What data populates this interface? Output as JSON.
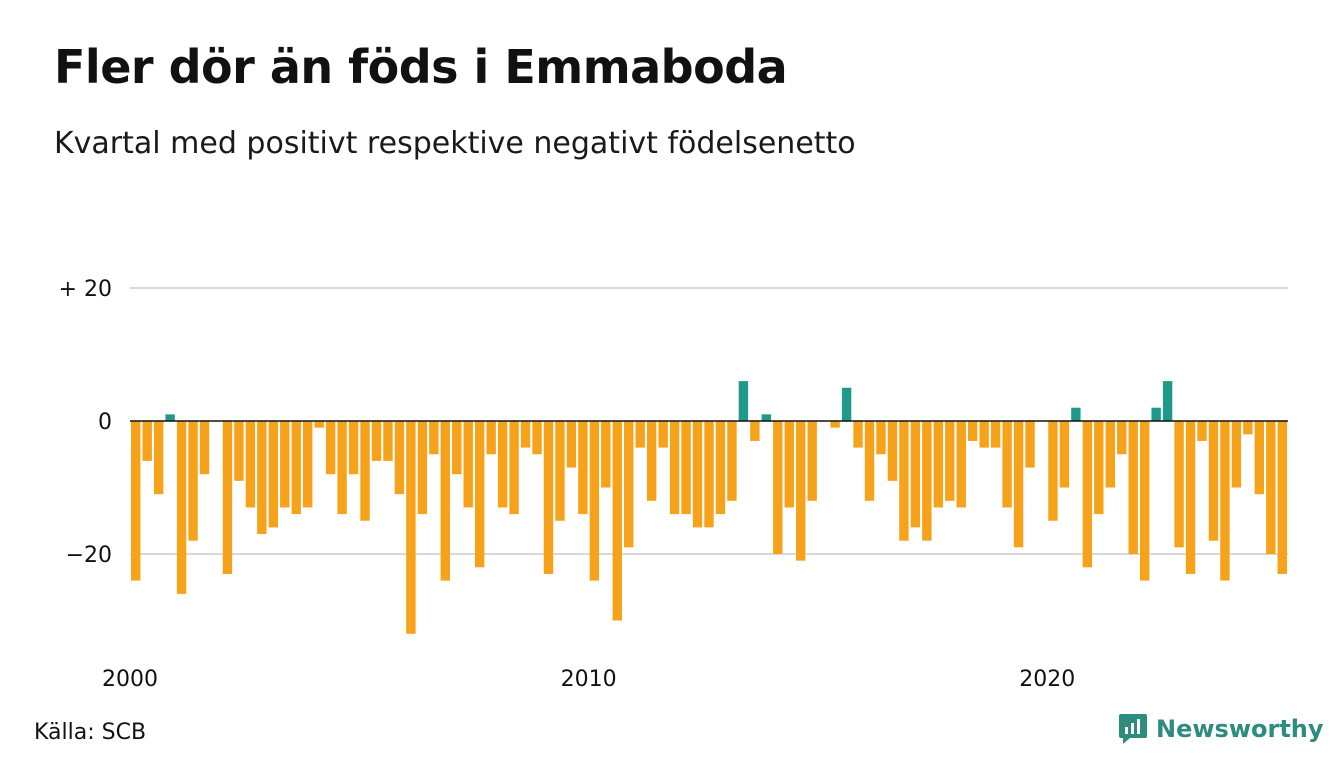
{
  "chart_data": {
    "type": "bar",
    "title": "Fler dör än föds i Emmaboda",
    "subtitle": "Kvartal med positivt respektive negativt födelsenetto",
    "xlabel": "",
    "ylabel": "",
    "ylim": [
      -33,
      20
    ],
    "yticks": [
      20,
      0,
      -20
    ],
    "ytick_labels": [
      "+ 20",
      "0",
      "−20"
    ],
    "xticks": [
      {
        "label": "2000",
        "index": 0
      },
      {
        "label": "2010",
        "index": 40
      },
      {
        "label": "2020",
        "index": 80
      }
    ],
    "grid": true,
    "colors": {
      "positive": "#1f9a8a",
      "negative": "#f7a21b"
    },
    "values": [
      -24,
      -6,
      -11,
      1,
      -26,
      -18,
      -8,
      0,
      -23,
      -9,
      -13,
      -17,
      -16,
      -13,
      -14,
      -13,
      -1,
      -8,
      -14,
      -8,
      -15,
      -6,
      -6,
      -11,
      -32,
      -14,
      -5,
      -24,
      -8,
      -13,
      -22,
      -5,
      -13,
      -14,
      -4,
      -5,
      -23,
      -15,
      -7,
      -14,
      -24,
      -10,
      -30,
      -19,
      -4,
      -12,
      -4,
      -14,
      -14,
      -16,
      -16,
      -14,
      -12,
      6,
      -3,
      1,
      -20,
      -13,
      -21,
      -12,
      0,
      -1,
      5,
      -4,
      -12,
      -5,
      -9,
      -18,
      -16,
      -18,
      -13,
      -12,
      -13,
      -3,
      -4,
      -4,
      -13,
      -19,
      -7,
      0,
      -15,
      -10,
      2,
      -22,
      -14,
      -10,
      -5,
      -20,
      -24,
      2,
      6,
      -19,
      -23,
      -3,
      -18,
      -24,
      -10,
      -2,
      -11,
      -20,
      -23
    ]
  },
  "source": "Källa: SCB",
  "brand": {
    "name": "Newsworthy",
    "icon": "newsworthy-logo-icon",
    "color": "#2e8c7e"
  }
}
